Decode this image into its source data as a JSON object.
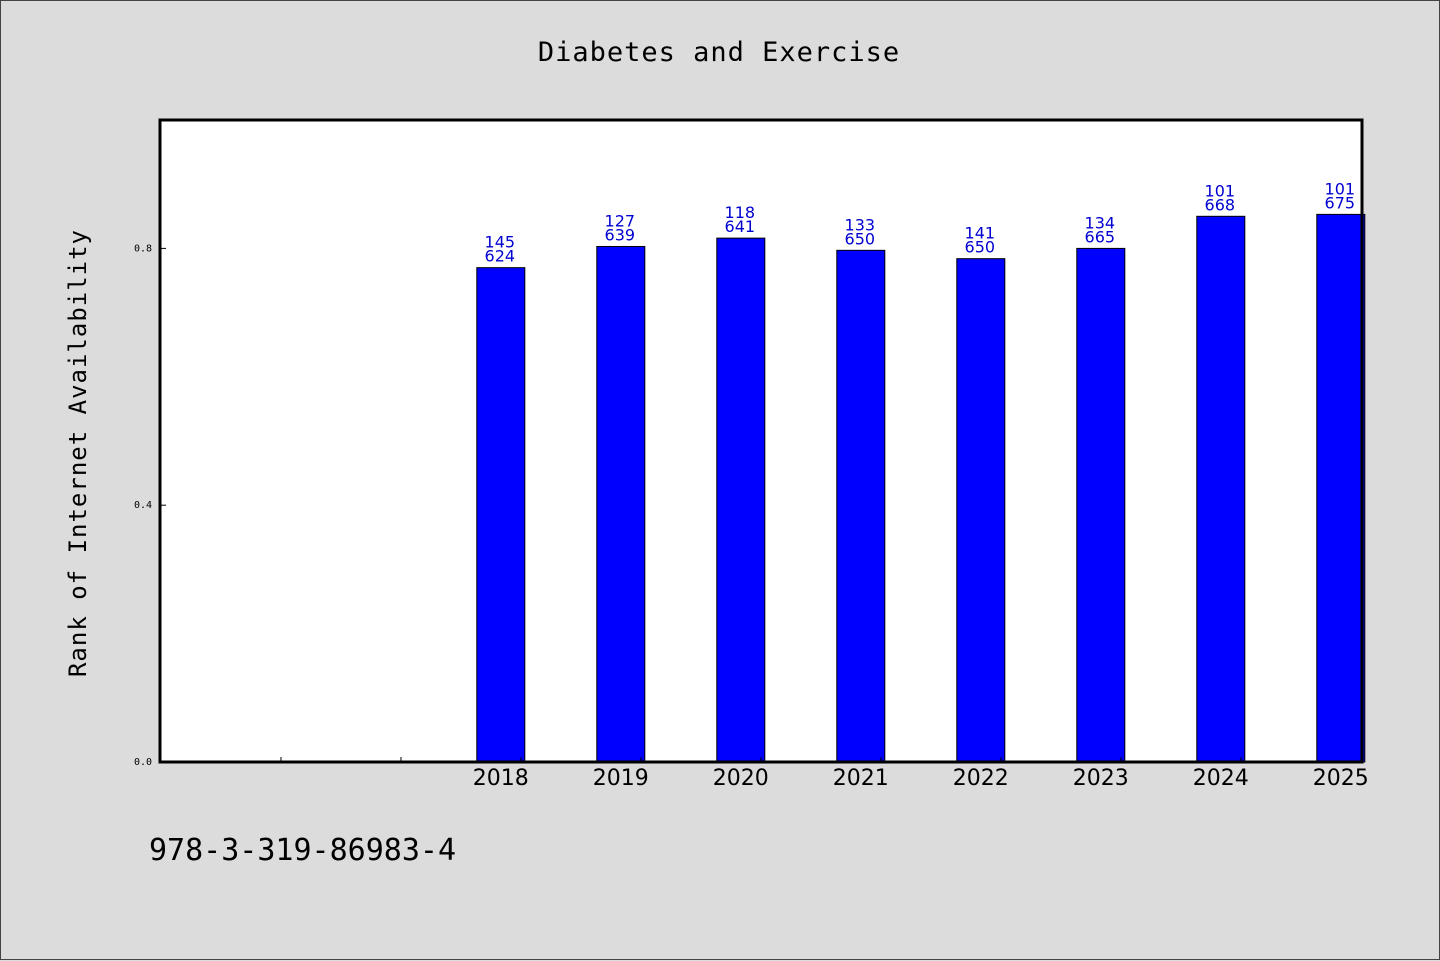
{
  "chart_data": {
    "type": "bar",
    "title": "Diabetes and Exercise",
    "xlabel": "",
    "ylabel": "Rank of Internet Availability",
    "categories": [
      "2018",
      "2019",
      "2020",
      "2021",
      "2022",
      "2023",
      "2024",
      "2025"
    ],
    "values": [
      0.77,
      0.803,
      0.816,
      0.797,
      0.784,
      0.8,
      0.85,
      0.853
    ],
    "data_labels": [
      [
        "145",
        "624"
      ],
      [
        "127",
        "639"
      ],
      [
        "118",
        "641"
      ],
      [
        "133",
        "650"
      ],
      [
        "141",
        "650"
      ],
      [
        "134",
        "665"
      ],
      [
        "101",
        "668"
      ],
      [
        "101",
        "675"
      ]
    ],
    "ylim": [
      0,
      1.0
    ],
    "yticks": [
      "0.0",
      "0.4",
      "0.8"
    ],
    "ytick_values": [
      0.0,
      0.4,
      0.8
    ],
    "grid": false,
    "legend": "none",
    "bar_color": "#0000ff",
    "label_color": "#0000d0",
    "background": "#dcdcdc",
    "plot_background": "#ffffff"
  },
  "footnote": "978-3-319-86983-4"
}
